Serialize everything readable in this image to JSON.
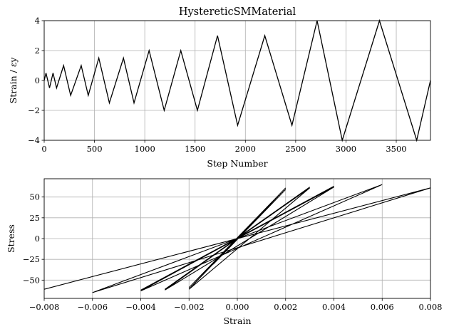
{
  "figure": {
    "charts": [
      {
        "type": "line",
        "title": "HystereticSMMaterial",
        "xlabel": "Step Number",
        "ylabel": "Strain / εy",
        "xlim": [
          0,
          3840
        ],
        "ylim": [
          -4,
          4
        ],
        "xticks": [
          0,
          500,
          1000,
          1500,
          2000,
          2500,
          3000,
          3500
        ],
        "yticks": [
          -4,
          -2,
          0,
          2,
          4
        ],
        "xtick_labels": [
          "0",
          "500",
          "1000",
          "1500",
          "2000",
          "2500",
          "3000",
          "3500"
        ],
        "ytick_labels": [
          "−4",
          "−2",
          "0",
          "2",
          "4"
        ],
        "grid": true,
        "line_color": "#000000"
      },
      {
        "type": "line",
        "title": "",
        "xlabel": "Strain",
        "ylabel": "Stress",
        "xlim": [
          -0.008,
          0.008
        ],
        "ylim": [
          -72,
          72
        ],
        "xticks": [
          -0.008,
          -0.006,
          -0.004,
          -0.002,
          0.0,
          0.002,
          0.004,
          0.006,
          0.008
        ],
        "yticks": [
          -50,
          -25,
          0,
          25,
          50
        ],
        "xtick_labels": [
          "−0.008",
          "−0.006",
          "−0.004",
          "−0.002",
          "0.000",
          "0.002",
          "0.004",
          "0.006",
          "0.008"
        ],
        "ytick_labels": [
          "−50",
          "−25",
          "0",
          "25",
          "50"
        ],
        "grid": true,
        "line_color": "#000000"
      }
    ]
  },
  "chart_data": [
    {
      "type": "line",
      "title": "HystereticSMMaterial",
      "xlabel": "Step Number",
      "ylabel": "Strain / εy",
      "xlim": [
        0,
        3840
      ],
      "ylim": [
        -4,
        4
      ],
      "grid": true,
      "series": [
        {
          "x": [
            0,
            18,
            53,
            88,
            123,
            193,
            263,
            368,
            438,
            543,
            648,
            788,
            893,
            1043,
            1193,
            1358,
            1523,
            1723,
            1923,
            2193,
            2463,
            2713,
            2963,
            3333,
            3703,
            3840
          ],
          "y": [
            0,
            0.5,
            -0.5,
            0.5,
            -0.5,
            1,
            -1,
            1,
            -1,
            1.5,
            -1.5,
            1.5,
            -1.5,
            2,
            -2,
            2,
            -2,
            3,
            -3,
            3,
            -3,
            4,
            -4,
            4,
            -4,
            0
          ]
        }
      ]
    },
    {
      "type": "line",
      "title": "",
      "xlabel": "Strain",
      "ylabel": "Stress",
      "xlim": [
        -0.008,
        0.008
      ],
      "ylim": [
        -72,
        72
      ],
      "grid": true,
      "series": [
        {
          "x": [
            0,
            0.001,
            -0.001,
            0.001,
            -0.001,
            0.002,
            -0.002,
            0.002,
            -0.002,
            0.003,
            -0.003,
            0.003,
            -0.003,
            0.004,
            -0.004,
            0.004,
            -0.004,
            0.006,
            -0.006,
            0.006,
            -0.006,
            0.008,
            -0.008,
            0.008,
            -0.008,
            0
          ],
          "y": [
            0,
            31,
            -31,
            31,
            -31,
            59,
            -59,
            61,
            -61,
            61,
            -61,
            62,
            -62,
            62,
            -62,
            63,
            -63,
            65,
            -65,
            65,
            -65,
            61,
            -61,
            61,
            -61,
            0
          ]
        }
      ]
    }
  ]
}
